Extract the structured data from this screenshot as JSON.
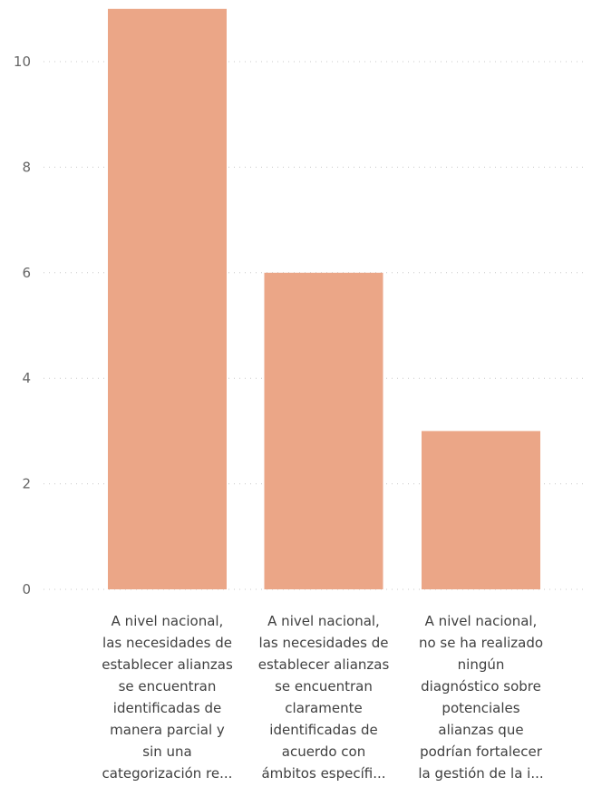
{
  "chart_data": {
    "type": "bar",
    "categories": [
      [
        "A nivel nacional,",
        "las necesidades de",
        "establecer alianzas",
        "se encuentran",
        "identificadas de",
        "manera parcial y",
        "sin una",
        "categorización re..."
      ],
      [
        "A nivel nacional,",
        "las necesidades de",
        "establecer alianzas",
        "se encuentran",
        "claramente",
        "identificadas de",
        "acuerdo con",
        "ámbitos específi..."
      ],
      [
        "A nivel nacional,",
        "no se ha realizado",
        "ningún",
        "diagnóstico sobre",
        "potenciales",
        "alianzas que",
        "podrían fortalecer",
        "la gestión de la i..."
      ]
    ],
    "values": [
      11,
      6,
      3
    ],
    "yticks": [
      0,
      2,
      4,
      6,
      8,
      10
    ],
    "ylim": [
      0,
      11
    ],
    "grid": true,
    "bar_color": "#eba687",
    "title": "",
    "xlabel": "",
    "ylabel": ""
  }
}
